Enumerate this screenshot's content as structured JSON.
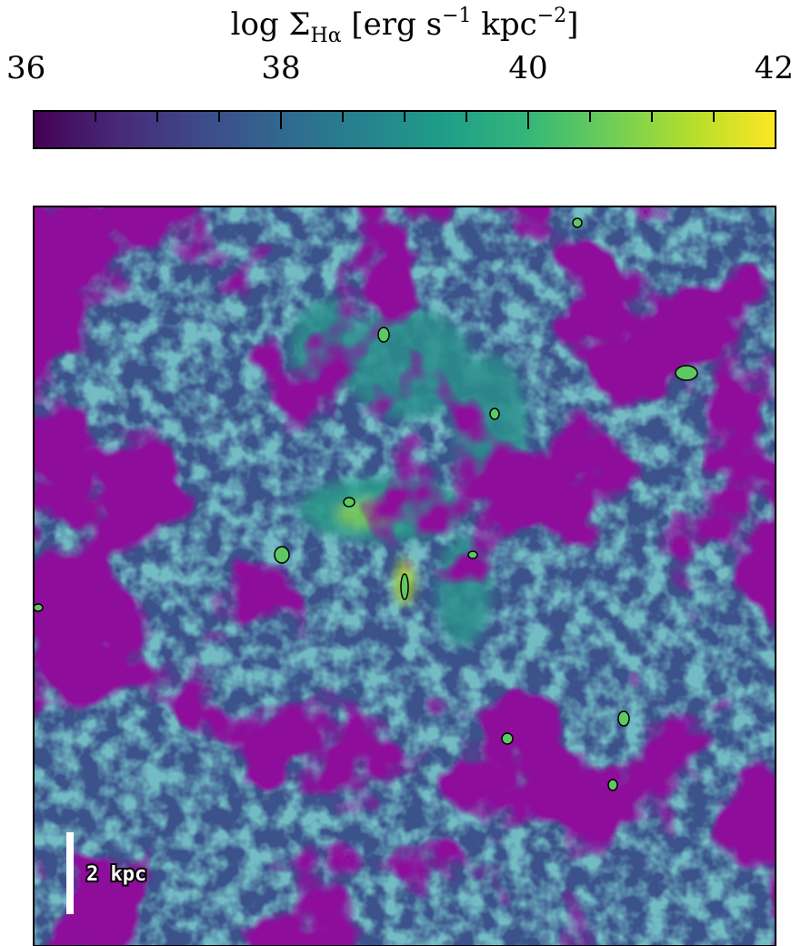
{
  "chart_data": {
    "type": "image-map",
    "title": [
      {
        "text": "log Σ",
        "style": "normal"
      },
      {
        "text": "Hα",
        "style": "sub"
      },
      {
        "text": " [erg s",
        "style": "normal"
      },
      {
        "text": "−1",
        "style": "sup"
      },
      {
        "text": " kpc",
        "style": "normal"
      },
      {
        "text": "−2",
        "style": "sup"
      },
      {
        "text": "]",
        "style": "normal"
      }
    ],
    "colormap": "viridis",
    "clim": [
      36,
      42
    ],
    "cticks": [
      36,
      38,
      40,
      42
    ],
    "cticks_minor": [
      36.5,
      37,
      37.5,
      38,
      38.5,
      39,
      39.5,
      40,
      40.5,
      41,
      41.5
    ],
    "scale_bar_label": "2 kpc"
  }
}
